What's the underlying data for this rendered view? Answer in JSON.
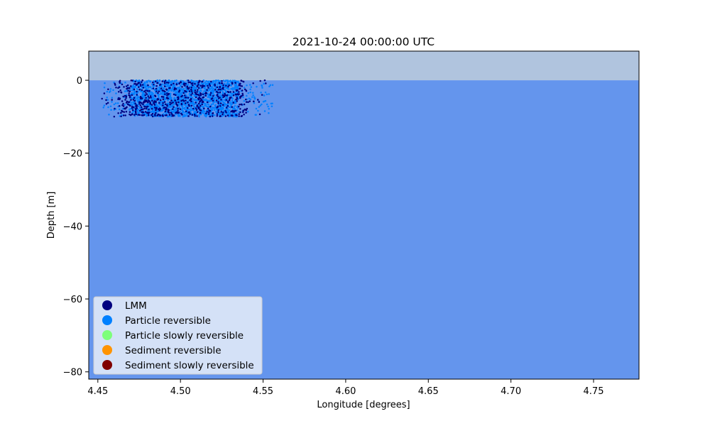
{
  "chart_data": {
    "type": "scatter",
    "title": "2021-10-24 00:00:00 UTC",
    "xlabel": "Longitude [degrees]",
    "ylabel": "Depth [m]",
    "xlim": [
      4.4445,
      4.7775
    ],
    "ylim": [
      -82,
      8
    ],
    "xticks": [
      4.45,
      4.5,
      4.55,
      4.6,
      4.65,
      4.7,
      4.75
    ],
    "xtick_labels": [
      "4.45",
      "4.50",
      "4.55",
      "4.60",
      "4.65",
      "4.70",
      "4.75"
    ],
    "yticks": [
      0,
      -20,
      -40,
      -60,
      -80
    ],
    "ytick_labels": [
      "0",
      "−20",
      "−40",
      "−60",
      "−80"
    ],
    "grid": false,
    "background": {
      "air_color": "#b0c4de",
      "water_color": "#6495ed",
      "surface_depth": 0,
      "bottom_depth": -82
    },
    "legend": {
      "placement": "lower-left",
      "entries": [
        {
          "label": "LMM",
          "color": "#000080"
        },
        {
          "label": "Particle reversible",
          "color": "#0080ff"
        },
        {
          "label": "Particle slowly reversible",
          "color": "#7dff7a"
        },
        {
          "label": "Sediment reversible",
          "color": "#ff9400"
        },
        {
          "label": "Sediment slowly reversible",
          "color": "#800000"
        }
      ]
    },
    "series": [
      {
        "name": "Particle reversible",
        "color": "#0080ff",
        "cloud": {
          "lon_min": 4.453,
          "lon_max": 4.558,
          "lon_core_min": 4.47,
          "lon_core_max": 4.535,
          "depth_min": -10,
          "depth_max": 0,
          "count": 1800
        }
      },
      {
        "name": "LMM",
        "color": "#000080",
        "cloud": {
          "lon_min": 4.452,
          "lon_max": 4.552,
          "lon_core_min": 4.462,
          "lon_core_max": 4.54,
          "depth_min": -10,
          "depth_max": 0,
          "count": 650
        }
      }
    ]
  }
}
